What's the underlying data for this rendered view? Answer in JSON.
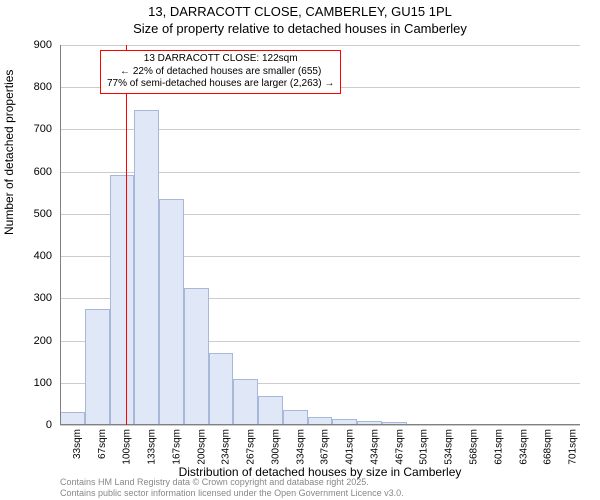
{
  "title1": "13, DARRACOTT CLOSE, CAMBERLEY, GU15 1PL",
  "title2": "Size of property relative to detached houses in Camberley",
  "ylabel": "Number of detached properties",
  "xlabel": "Distribution of detached houses by size in Camberley",
  "chart": {
    "type": "histogram",
    "background_color": "#ffffff",
    "grid_color": "#cccccc",
    "axis_color": "#808080",
    "bar_fill": "#e0e8f8",
    "bar_stroke": "#a8b8d8",
    "marker_color": "#ff0000",
    "annotation_bg": "#ffffff",
    "annotation_border": "#ff0000",
    "ylim": [
      0,
      900
    ],
    "ytick_step": 100,
    "yticks": [
      0,
      100,
      200,
      300,
      400,
      500,
      600,
      700,
      800,
      900
    ],
    "categories": [
      "33sqm",
      "67sqm",
      "100sqm",
      "133sqm",
      "167sqm",
      "200sqm",
      "234sqm",
      "267sqm",
      "300sqm",
      "334sqm",
      "367sqm",
      "401sqm",
      "434sqm",
      "467sqm",
      "501sqm",
      "534sqm",
      "568sqm",
      "601sqm",
      "634sqm",
      "668sqm",
      "701sqm"
    ],
    "values": [
      30,
      275,
      593,
      745,
      535,
      325,
      170,
      108,
      68,
      35,
      18,
      15,
      10,
      8,
      3,
      2,
      0,
      0,
      0,
      0,
      0
    ],
    "marker_category_index": 2.65,
    "title_fontsize": 13,
    "label_fontsize": 12,
    "tick_fontsize": 11,
    "xtick_fontsize": 10
  },
  "annotation": {
    "line1": "13 DARRACOTT CLOSE: 122sqm",
    "line2": "← 22% of detached houses are smaller (655)",
    "line3": "77% of semi-detached houses are larger (2,263) →"
  },
  "footer": {
    "line1": "Contains HM Land Registry data © Crown copyright and database right 2025.",
    "line2": "Contains public sector information licensed under the Open Government Licence v3.0."
  }
}
